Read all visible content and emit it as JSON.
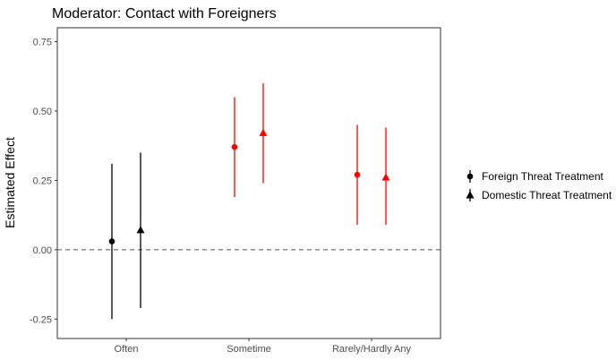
{
  "chart_data": {
    "type": "scatter",
    "subtype": "point-range",
    "title": "Moderator: Contact with Foreigners",
    "xlabel": "",
    "ylabel": "Estimated Effect",
    "categories": [
      "Often",
      "Sometime",
      "Rarely/Hardly Any"
    ],
    "ylim": [
      -0.32,
      0.8
    ],
    "yticks": [
      -0.25,
      0.0,
      0.25,
      0.5,
      0.75
    ],
    "ytick_labels": [
      "-0.25",
      "0.00",
      "0.25",
      "0.50",
      "0.75"
    ],
    "reference_line": {
      "y": 0,
      "style": "dashed",
      "color": "#555555"
    },
    "grid": false,
    "legend": {
      "placement": "right",
      "entries": [
        {
          "label": "Foreign Threat Treatment",
          "marker": "circle"
        },
        {
          "label": "Domestic Threat Treatment",
          "marker": "triangle"
        }
      ]
    },
    "colors": {
      "black": "#000000",
      "red": "#ff0000"
    },
    "series": [
      {
        "name": "Foreign Threat Treatment",
        "marker": "circle",
        "points": [
          {
            "category": "Often",
            "estimate": 0.03,
            "lower": -0.25,
            "upper": 0.31,
            "color": "#000000"
          },
          {
            "category": "Sometime",
            "estimate": 0.37,
            "lower": 0.19,
            "upper": 0.55,
            "color": "#ff0000"
          },
          {
            "category": "Rarely/Hardly Any",
            "estimate": 0.27,
            "lower": 0.09,
            "upper": 0.45,
            "color": "#ff0000"
          }
        ]
      },
      {
        "name": "Domestic Threat Treatment",
        "marker": "triangle",
        "points": [
          {
            "category": "Often",
            "estimate": 0.07,
            "lower": -0.21,
            "upper": 0.35,
            "color": "#000000"
          },
          {
            "category": "Sometime",
            "estimate": 0.42,
            "lower": 0.24,
            "upper": 0.6,
            "color": "#ff0000"
          },
          {
            "category": "Rarely/Hardly Any",
            "estimate": 0.26,
            "lower": 0.09,
            "upper": 0.44,
            "color": "#ff0000"
          }
        ]
      }
    ]
  }
}
